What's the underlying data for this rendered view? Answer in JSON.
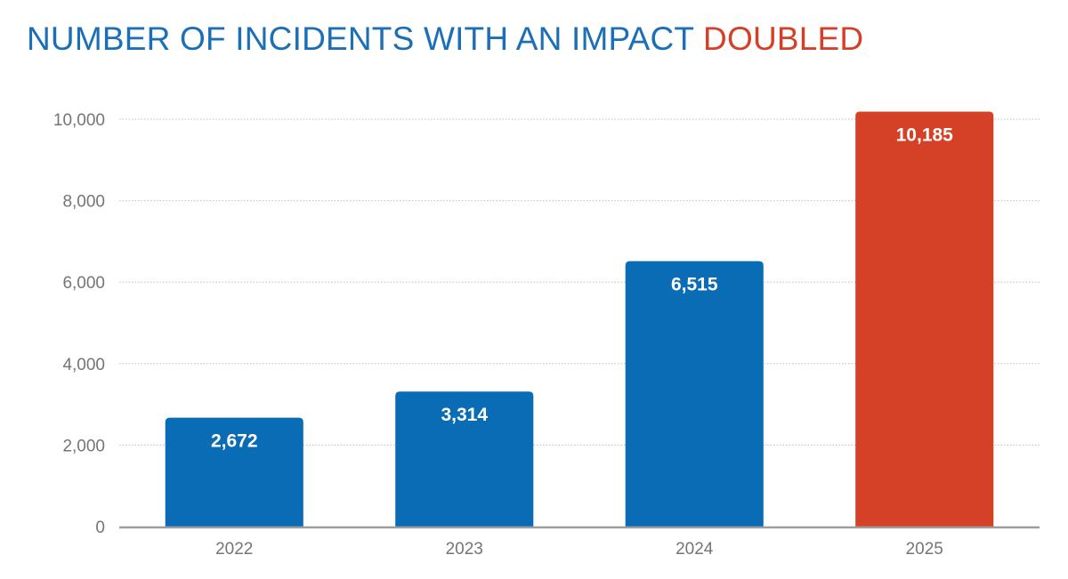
{
  "chart_data": {
    "type": "bar",
    "title_parts": [
      {
        "text": "NUMBER OF INCIDENTS WITH AN IMPACT ",
        "color": "#1a6fb6"
      },
      {
        "text": "DOUBLED",
        "color": "#d63f27"
      }
    ],
    "categories": [
      "2022",
      "2023",
      "2024",
      "2025"
    ],
    "values": [
      2672,
      3314,
      6515,
      10185
    ],
    "value_labels": [
      "2,672",
      "3,314",
      "6,515",
      "10,185"
    ],
    "bar_colors": [
      "#0a6cb5",
      "#0a6cb5",
      "#0a6cb5",
      "#d44127"
    ],
    "ylim": [
      0,
      10000
    ],
    "yticks": [
      0,
      2000,
      4000,
      6000,
      8000,
      10000
    ],
    "ytick_labels": [
      "0",
      "2,000",
      "4,000",
      "6,000",
      "8,000",
      "10,000"
    ],
    "xlabel": "",
    "ylabel": "",
    "grid": true,
    "legend": "none"
  }
}
